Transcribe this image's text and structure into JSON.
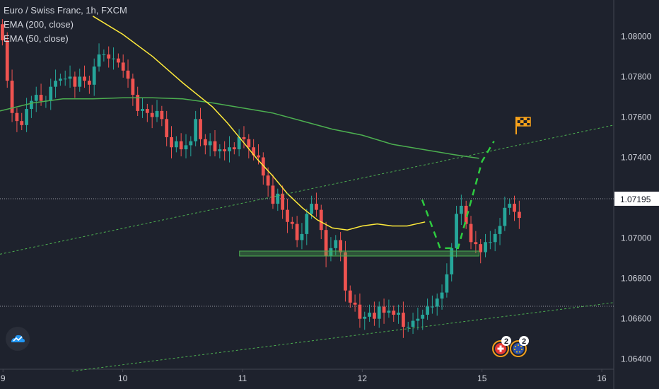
{
  "legend": {
    "symbol": "Euro / Swiss Franc, 1h, FXCM",
    "ema200": "EMA (200, close)",
    "ema50": "EMA (50, close)"
  },
  "colors": {
    "background": "#1e222d",
    "up": "#26a69a",
    "down": "#ef5350",
    "ema200": "#4caf50",
    "ema50": "#ffeb3b",
    "trend": "#4caf50",
    "projection": "#2ecc40",
    "support_zone": "#4caf50",
    "axis_text": "#d1d4dc",
    "price_tag_bg": "#ffffff",
    "price_tag_text": "#131722",
    "flag": "#f7a21b"
  },
  "icons": [
    "tradingview-logo-icon",
    "swiss-flag-event-icon",
    "eu-flag-event-icon",
    "checkered-flag-icon"
  ],
  "events": {
    "ch_count": "2",
    "eu_count": "2"
  },
  "chart_data": {
    "type": "candlestick",
    "title": "Euro / Swiss Franc, 1h, FXCM",
    "ylim": [
      1.0635,
      1.0818
    ],
    "y_ticks": [
      "1.08000",
      "1.07800",
      "1.07600",
      "1.07400",
      "1.07200",
      "1.07000",
      "1.06800",
      "1.06600",
      "1.06400"
    ],
    "y_tick_values": [
      1.08,
      1.078,
      1.076,
      1.074,
      1.072,
      1.07,
      1.068,
      1.066,
      1.064
    ],
    "x_ticks": [
      "9",
      "10",
      "11",
      "12",
      "15",
      "16"
    ],
    "x_tick_values": [
      0,
      4,
      8,
      12,
      16,
      20
    ],
    "xlim": [
      -0.1,
      20.4
    ],
    "current_price": {
      "value": 1.07195,
      "label": "1.07195"
    },
    "horizontal_lines": [
      1.07195,
      1.06662
    ],
    "candles_close": [
      1.0798,
      1.0778,
      1.0762,
      1.0758,
      1.0756,
      1.0764,
      1.0768,
      1.0771,
      1.0768,
      1.0768,
      1.0775,
      1.0778,
      1.0779,
      1.0779,
      1.078,
      1.0775,
      1.078,
      1.0778,
      1.0776,
      1.0785,
      1.0791,
      1.0791,
      1.0789,
      1.0789,
      1.0787,
      1.0783,
      1.0779,
      1.0771,
      1.0763,
      1.0764,
      1.0762,
      1.076,
      1.0763,
      1.0759,
      1.075,
      1.0745,
      1.0748,
      1.0744,
      1.0746,
      1.0748,
      1.0759,
      1.0749,
      1.0746,
      1.0748,
      1.0743,
      1.0744,
      1.0743,
      1.0745,
      1.0744,
      1.075,
      1.0749,
      1.0745,
      1.0741,
      1.074,
      1.0731,
      1.0726,
      1.0717,
      1.0722,
      1.0714,
      1.0708,
      1.0707,
      1.0699,
      1.0702,
      1.0712,
      1.0717,
      1.0714,
      1.0704,
      1.0691,
      1.0695,
      1.0699,
      1.0693,
      1.0674,
      1.0668,
      1.0667,
      1.066,
      1.0661,
      1.0663,
      1.066,
      1.0666,
      1.0663,
      1.0664,
      1.0662,
      1.0663,
      1.0656,
      1.0656,
      1.0659,
      1.066,
      1.0662,
      1.0666,
      1.0666,
      1.067,
      1.0673,
      1.0682,
      1.0695,
      1.0712,
      1.0716,
      1.0707,
      1.0698,
      1.0697,
      1.0693,
      1.0698,
      1.0698,
      1.0702,
      1.0706,
      1.0715,
      1.0717,
      1.0713,
      1.071
    ],
    "series": [
      {
        "name": "EMA (200, close)",
        "x": [
          -0.1,
          1,
          2,
          3,
          4,
          5,
          6,
          7,
          8,
          9,
          10,
          11,
          12,
          13,
          14,
          15,
          15.9
        ],
        "values": [
          1.0763,
          1.0767,
          1.0769,
          1.0769,
          1.07695,
          1.07695,
          1.0769,
          1.0767,
          1.07645,
          1.0762,
          1.0758,
          1.0754,
          1.0751,
          1.07465,
          1.0744,
          1.07415,
          1.07395
        ]
      },
      {
        "name": "EMA (50, close)",
        "x": [
          3,
          4,
          5,
          6,
          7,
          7.5,
          8,
          8.5,
          9,
          9.5,
          10,
          10.5,
          11,
          11.5,
          12,
          12.5,
          13,
          13.5,
          14.1
        ],
        "values": [
          1.081,
          1.0801,
          1.079,
          1.0777,
          1.0765,
          1.0757,
          1.0748,
          1.0739,
          1.0731,
          1.0722,
          1.0715,
          1.0709,
          1.0705,
          1.0704,
          1.0706,
          1.0707,
          1.0706,
          1.0706,
          1.0708
        ]
      }
    ],
    "trendlines": [
      {
        "from": [
          -0.1,
          1.0692
        ],
        "to": [
          20.4,
          1.0756
        ]
      },
      {
        "from": [
          2.3,
          1.0634
        ],
        "to": [
          20.4,
          1.0668
        ]
      }
    ],
    "support_zone": {
      "x": [
        7.9,
        15.9
      ],
      "y": [
        1.06915,
        1.06925
      ]
    },
    "projection_path": [
      [
        14.0,
        1.0719
      ],
      [
        14.6,
        1.0695
      ],
      [
        15.2,
        1.0695
      ],
      [
        16.0,
        1.0738
      ],
      [
        16.4,
        1.0748
      ]
    ]
  }
}
